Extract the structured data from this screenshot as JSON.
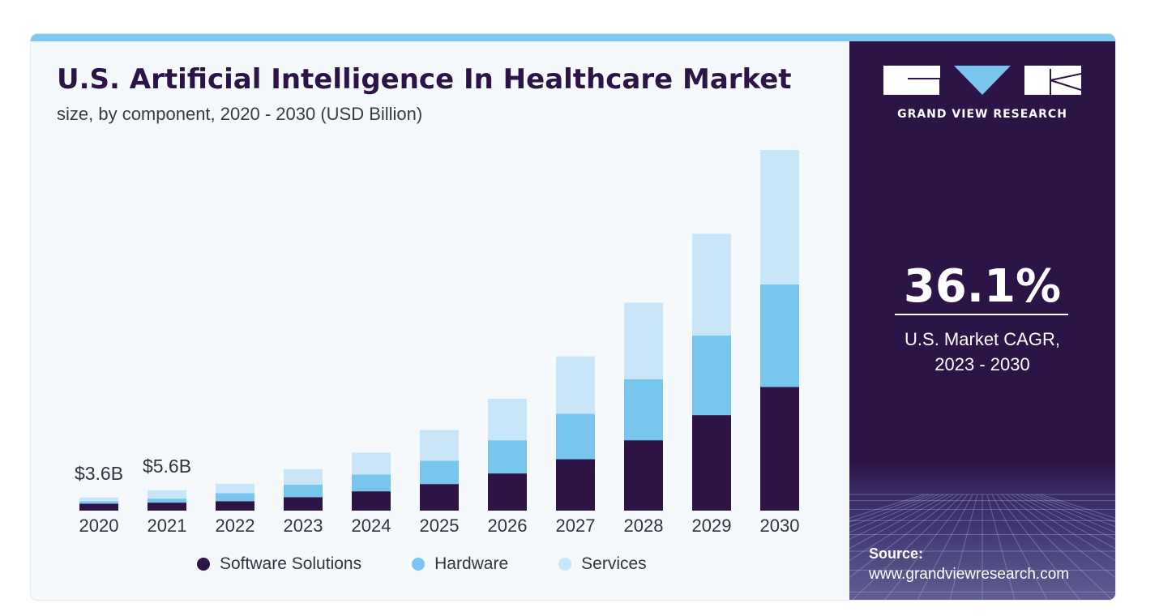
{
  "header": {
    "title": "U.S. Artificial Intelligence In Healthcare Market",
    "subtitle": "size, by component, 2020 - 2030 (USD Billion)"
  },
  "colors": {
    "software": "#2d1446",
    "hardware": "#78c6ee",
    "services": "#c9e6f8",
    "side_panel": "#2d1446",
    "top_bar": "#7ec8ee"
  },
  "chart_data": {
    "type": "bar",
    "stacked": true,
    "title": "U.S. Artificial Intelligence In Healthcare Market",
    "subtitle": "size, by component, 2020 - 2030 (USD Billion)",
    "xlabel": "",
    "ylabel": "",
    "grid": false,
    "legend_position": "bottom",
    "ylim": [
      0,
      100
    ],
    "categories": [
      "2020",
      "2021",
      "2022",
      "2023",
      "2024",
      "2025",
      "2026",
      "2027",
      "2028",
      "2029",
      "2030"
    ],
    "series": [
      {
        "name": "Software Solutions",
        "color": "#2d1446",
        "values": [
          1.9,
          2.2,
          2.6,
          3.7,
          5.3,
          7.3,
          10.2,
          14.1,
          19.3,
          26.2,
          33.9
        ]
      },
      {
        "name": "Hardware",
        "color": "#78c6ee",
        "values": [
          0.7,
          1.1,
          2.2,
          3.4,
          4.6,
          6.4,
          9.1,
          12.5,
          16.7,
          21.8,
          28.1
        ]
      },
      {
        "name": "Services",
        "color": "#c9e6f8",
        "values": [
          1.0,
          2.3,
          2.6,
          4.3,
          6.0,
          8.4,
          11.4,
          15.7,
          21.0,
          27.9,
          36.9
        ]
      }
    ],
    "annotations": [
      {
        "category": "2020",
        "label": "$3.6B"
      },
      {
        "category": "2021",
        "label": "$5.6B"
      }
    ]
  },
  "side_panel": {
    "brand": "GRAND VIEW RESEARCH",
    "cagr_value": "36.1%",
    "cagr_label_line1": "U.S. Market CAGR,",
    "cagr_label_line2": "2023 - 2030",
    "source_title": "Source:",
    "source_url": "www.grandviewresearch.com"
  }
}
